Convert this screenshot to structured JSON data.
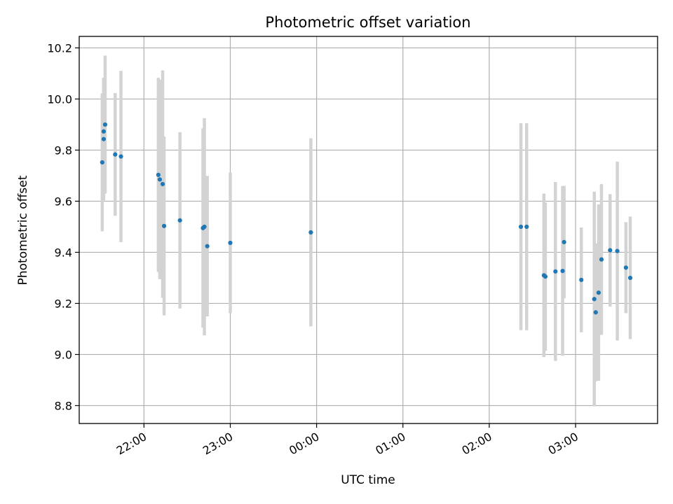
{
  "chart_data": {
    "type": "scatter",
    "title": "Photometric offset variation",
    "xlabel": "UTC time",
    "ylabel": "Photometric offset",
    "xlim": [
      "21:15",
      "03:57"
    ],
    "ylim": [
      8.73,
      10.245
    ],
    "xticks": [
      {
        "time": "22:00",
        "label": "22:00"
      },
      {
        "time": "23:00",
        "label": "23:00"
      },
      {
        "time": "00:00",
        "label": "00:00"
      },
      {
        "time": "01:00",
        "label": "01:00"
      },
      {
        "time": "02:00",
        "label": "02:00"
      },
      {
        "time": "03:00",
        "label": "03:00"
      }
    ],
    "yticks": [
      {
        "value": 8.8,
        "label": "8.8"
      },
      {
        "value": 9.0,
        "label": "9.0"
      },
      {
        "value": 9.2,
        "label": "9.2"
      },
      {
        "value": 9.4,
        "label": "9.4"
      },
      {
        "value": 9.6,
        "label": "9.6"
      },
      {
        "value": 9.8,
        "label": "9.8"
      },
      {
        "value": 10.0,
        "label": "10.0"
      },
      {
        "value": 10.2,
        "label": "10.2"
      }
    ],
    "grid": true,
    "x_tick_rotation": 30,
    "colors": {
      "marker": "#1f77b4",
      "errorbar": "#d3d3d3"
    },
    "points": [
      {
        "time": "21:31",
        "y": 9.752,
        "err": 0.27
      },
      {
        "time": "21:32",
        "y": 9.843,
        "err": 0.24
      },
      {
        "time": "21:32",
        "y": 9.873,
        "err": 0.21
      },
      {
        "time": "21:33",
        "y": 9.9,
        "err": 0.27
      },
      {
        "time": "21:40",
        "y": 9.783,
        "err": 0.24
      },
      {
        "time": "21:44",
        "y": 9.775,
        "err": 0.335
      },
      {
        "time": "22:10",
        "y": 9.703,
        "err": 0.38
      },
      {
        "time": "22:11",
        "y": 9.685,
        "err": 0.39
      },
      {
        "time": "22:13",
        "y": 9.667,
        "err": 0.445
      },
      {
        "time": "22:14",
        "y": 9.503,
        "err": 0.35
      },
      {
        "time": "22:25",
        "y": 9.525,
        "err": 0.345
      },
      {
        "time": "22:41",
        "y": 9.495,
        "err": 0.39
      },
      {
        "time": "22:42",
        "y": 9.5,
        "err": 0.425
      },
      {
        "time": "22:44",
        "y": 9.424,
        "err": 0.275
      },
      {
        "time": "23:00",
        "y": 9.437,
        "err": 0.275
      },
      {
        "time": "23:56",
        "y": 9.478,
        "err": 0.368
      },
      {
        "time": "02:22",
        "y": 9.5,
        "err": 0.405
      },
      {
        "time": "02:26",
        "y": 9.5,
        "err": 0.405
      },
      {
        "time": "02:38",
        "y": 9.31,
        "err": 0.32
      },
      {
        "time": "02:39",
        "y": 9.305,
        "err": 0.29
      },
      {
        "time": "02:46",
        "y": 9.325,
        "err": 0.35
      },
      {
        "time": "02:51",
        "y": 9.327,
        "err": 0.332
      },
      {
        "time": "02:52",
        "y": 9.44,
        "err": 0.22
      },
      {
        "time": "03:04",
        "y": 9.292,
        "err": 0.205
      },
      {
        "time": "03:13",
        "y": 9.217,
        "err": 0.42
      },
      {
        "time": "03:14",
        "y": 9.165,
        "err": 0.27
      },
      {
        "time": "03:16",
        "y": 9.242,
        "err": 0.345
      },
      {
        "time": "03:18",
        "y": 9.372,
        "err": 0.295
      },
      {
        "time": "03:24",
        "y": 9.408,
        "err": 0.22
      },
      {
        "time": "03:29",
        "y": 9.405,
        "err": 0.35
      },
      {
        "time": "03:35",
        "y": 9.34,
        "err": 0.178
      },
      {
        "time": "03:38",
        "y": 9.3,
        "err": 0.24
      }
    ]
  }
}
